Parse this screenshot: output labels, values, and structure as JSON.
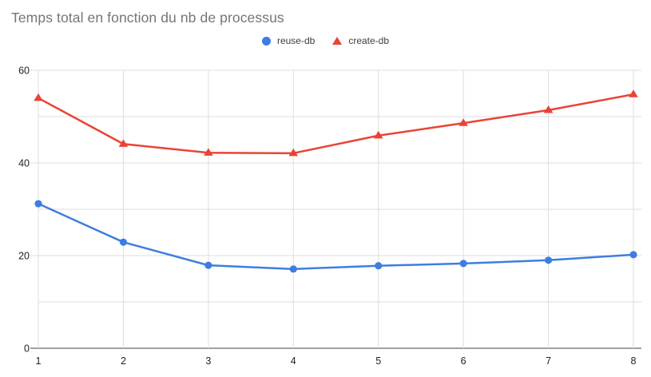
{
  "chart": {
    "title": "Temps total en fonction du nb de processus"
  },
  "chart_data": {
    "type": "line",
    "title": "Temps total en fonction du nb de processus",
    "x": [
      1,
      2,
      3,
      4,
      5,
      6,
      7,
      8
    ],
    "x_tick_labels": [
      "1",
      "2",
      "3",
      "4",
      "5",
      "6",
      "7",
      "8"
    ],
    "series": [
      {
        "name": "reuse-db",
        "marker": "circle",
        "color": "#3e7de0",
        "values": [
          31.2,
          22.9,
          17.9,
          17.1,
          17.8,
          18.3,
          19.0,
          20.2
        ]
      },
      {
        "name": "create-db",
        "marker": "triangle",
        "color": "#ea4335",
        "values": [
          54.0,
          44.1,
          42.2,
          42.1,
          45.9,
          48.6,
          51.4,
          54.8
        ]
      }
    ],
    "xlabel": "",
    "ylabel": "",
    "ylim": [
      0,
      60
    ],
    "y_major_ticks": [
      0,
      20,
      40,
      60
    ],
    "y_tick_labels": [
      "0",
      "20",
      "40",
      "60"
    ],
    "y_minor_gridlines": [
      10,
      30,
      50
    ],
    "grid": true,
    "legend_position": "top-center",
    "colors": {
      "gridline": "#dedede",
      "axis_line": "#424242",
      "tick_label": "#202124",
      "title": "#757575",
      "background": "#ffffff"
    }
  }
}
